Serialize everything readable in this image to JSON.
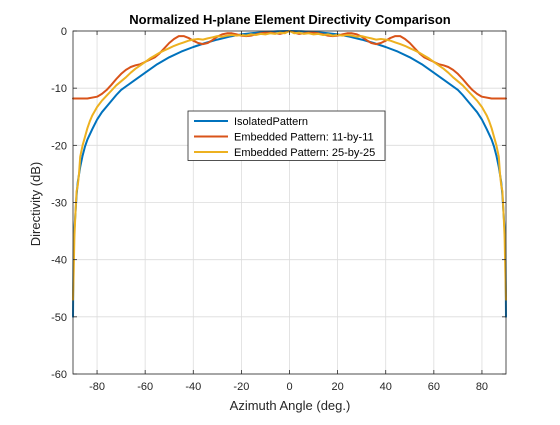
{
  "chart_data": {
    "type": "line",
    "title": "Normalized H-plane Element Directivity Comparison",
    "xlabel": "Azimuth Angle (deg.)",
    "ylabel": "Directivity (dB)",
    "xlim": [
      -90,
      90
    ],
    "ylim": [
      -60,
      0
    ],
    "xticks": [
      -80,
      -60,
      -40,
      -20,
      0,
      20,
      40,
      60,
      80
    ],
    "yticks": [
      0,
      -10,
      -20,
      -30,
      -40,
      -50,
      -60
    ],
    "grid": true,
    "legend_position": "center",
    "series": [
      {
        "name": "IsolatedPattern",
        "color": "#0072BD",
        "x": [
          -90,
          -89.9,
          -89.8,
          -89.5,
          -89,
          -88.5,
          -88,
          -87,
          -86,
          -85,
          -84,
          -82,
          -80,
          -78,
          -75,
          -72,
          -70,
          -65,
          -60,
          -55,
          -50,
          -45,
          -40,
          -35,
          -30,
          -25,
          -20,
          -15,
          -10,
          -5,
          0,
          5,
          10,
          15,
          20,
          25,
          30,
          35,
          40,
          45,
          50,
          55,
          60,
          65,
          70,
          72,
          75,
          78,
          80,
          82,
          84,
          85,
          86,
          87,
          88,
          88.5,
          89,
          89.5,
          89.8,
          89.9,
          90
        ],
        "y": [
          -50,
          -45,
          -39.8,
          -35.2,
          -32,
          -28.7,
          -26.4,
          -23.8,
          -21.8,
          -20.2,
          -19.0,
          -17.2,
          -15.5,
          -14.2,
          -12.7,
          -11.2,
          -10.3,
          -8.8,
          -7.3,
          -5.8,
          -4.6,
          -3.6,
          -2.8,
          -2.1,
          -1.5,
          -1.0,
          -0.6,
          -0.35,
          -0.18,
          -0.05,
          0,
          -0.05,
          -0.18,
          -0.35,
          -0.6,
          -1.0,
          -1.5,
          -2.1,
          -2.8,
          -3.6,
          -4.6,
          -5.8,
          -7.3,
          -8.8,
          -10.3,
          -11.2,
          -12.7,
          -14.2,
          -15.5,
          -17.2,
          -19.0,
          -20.2,
          -21.8,
          -23.8,
          -26.4,
          -28.7,
          -32,
          -35.2,
          -39.8,
          -45,
          -50
        ]
      },
      {
        "name": "Embedded Pattern: 11-by-11",
        "color": "#D95319",
        "x": [
          -90,
          -84,
          -80,
          -78,
          -76,
          -74,
          -72,
          -70,
          -68,
          -66,
          -64,
          -62,
          -60,
          -58,
          -56,
          -54,
          -52,
          -50,
          -48,
          -46,
          -44,
          -42,
          -40,
          -38,
          -36,
          -34,
          -32,
          -30,
          -28,
          -26,
          -24,
          -22,
          -20,
          -18,
          -16,
          -14,
          -12,
          -10,
          -8,
          -6,
          -4,
          -2,
          0,
          2,
          4,
          6,
          8,
          10,
          12,
          14,
          16,
          18,
          20,
          22,
          24,
          26,
          28,
          30,
          32,
          34,
          36,
          38,
          40,
          42,
          44,
          46,
          48,
          50,
          52,
          54,
          56,
          58,
          60,
          62,
          64,
          66,
          68,
          70,
          72,
          74,
          76,
          78,
          80,
          84,
          90
        ],
        "y": [
          -11.8,
          -11.8,
          -11.5,
          -11.0,
          -10.3,
          -9.4,
          -8.4,
          -7.5,
          -6.8,
          -6.3,
          -6.0,
          -5.8,
          -5.4,
          -5.0,
          -4.6,
          -3.9,
          -3.0,
          -2.1,
          -1.4,
          -0.9,
          -0.9,
          -1.2,
          -1.7,
          -2.1,
          -2.3,
          -2.1,
          -1.6,
          -1.0,
          -0.6,
          -0.4,
          -0.4,
          -0.6,
          -0.8,
          -0.9,
          -0.8,
          -0.6,
          -0.4,
          -0.3,
          -0.3,
          -0.4,
          -0.5,
          -0.3,
          0,
          -0.3,
          -0.5,
          -0.4,
          -0.3,
          -0.3,
          -0.4,
          -0.6,
          -0.8,
          -0.9,
          -0.8,
          -0.6,
          -0.4,
          -0.4,
          -0.6,
          -1.0,
          -1.6,
          -2.1,
          -2.3,
          -2.1,
          -1.7,
          -1.2,
          -0.9,
          -0.9,
          -1.4,
          -2.1,
          -3.0,
          -3.9,
          -4.6,
          -5.0,
          -5.4,
          -5.8,
          -6.0,
          -6.3,
          -6.8,
          -7.5,
          -8.4,
          -9.4,
          -10.3,
          -11.0,
          -11.5,
          -11.8,
          -11.8
        ]
      },
      {
        "name": "Embedded Pattern: 25-by-25",
        "color": "#EDB120",
        "x": [
          -90,
          -89.7,
          -89.4,
          -89,
          -88.5,
          -88,
          -87.5,
          -87,
          -86,
          -85,
          -84,
          -83,
          -82,
          -80,
          -78,
          -76,
          -74,
          -72,
          -70,
          -68,
          -66,
          -64,
          -62,
          -60,
          -58,
          -56,
          -54,
          -52,
          -50,
          -48,
          -46,
          -44,
          -42,
          -40,
          -38,
          -36,
          -34,
          -32,
          -30,
          -28,
          -26,
          -24,
          -22,
          -20,
          -18,
          -16,
          -14,
          -12,
          -10,
          -8,
          -6,
          -4,
          -2,
          0,
          2,
          4,
          6,
          8,
          10,
          12,
          14,
          16,
          18,
          20,
          22,
          24,
          26,
          28,
          30,
          32,
          34,
          36,
          38,
          40,
          42,
          44,
          46,
          48,
          50,
          52,
          54,
          56,
          58,
          60,
          62,
          64,
          66,
          68,
          70,
          72,
          74,
          76,
          78,
          80,
          82,
          83,
          84,
          85,
          86,
          87,
          87.5,
          88,
          88.5,
          89,
          89.4,
          89.7,
          90
        ],
        "y": [
          -47,
          -42,
          -36,
          -32,
          -28,
          -27,
          -25,
          -22,
          -20,
          -18.5,
          -17,
          -15.8,
          -14.8,
          -13.3,
          -12.2,
          -11.3,
          -10.4,
          -9.5,
          -8.8,
          -8.1,
          -7.3,
          -6.6,
          -6.0,
          -5.4,
          -4.8,
          -4.3,
          -3.8,
          -3.4,
          -3.0,
          -2.6,
          -2.3,
          -2.0,
          -1.7,
          -1.5,
          -1.4,
          -1.5,
          -1.3,
          -1.1,
          -0.9,
          -1.0,
          -0.8,
          -0.7,
          -0.8,
          -0.7,
          -0.8,
          -0.6,
          -0.7,
          -0.5,
          -0.6,
          -0.4,
          -0.5,
          -0.3,
          -0.4,
          0,
          -0.4,
          -0.3,
          -0.5,
          -0.4,
          -0.6,
          -0.5,
          -0.7,
          -0.6,
          -0.8,
          -0.7,
          -0.8,
          -0.7,
          -0.8,
          -1.0,
          -0.9,
          -1.1,
          -1.3,
          -1.5,
          -1.4,
          -1.5,
          -1.7,
          -2.0,
          -2.3,
          -2.6,
          -3.0,
          -3.4,
          -3.8,
          -4.3,
          -4.8,
          -5.4,
          -6.0,
          -6.6,
          -7.3,
          -8.1,
          -8.8,
          -9.5,
          -10.4,
          -11.3,
          -12.2,
          -13.3,
          -14.8,
          -15.8,
          -17,
          -18.5,
          -20,
          -22,
          -25,
          -27,
          -28,
          -32,
          -36,
          -42,
          -47
        ]
      }
    ]
  }
}
